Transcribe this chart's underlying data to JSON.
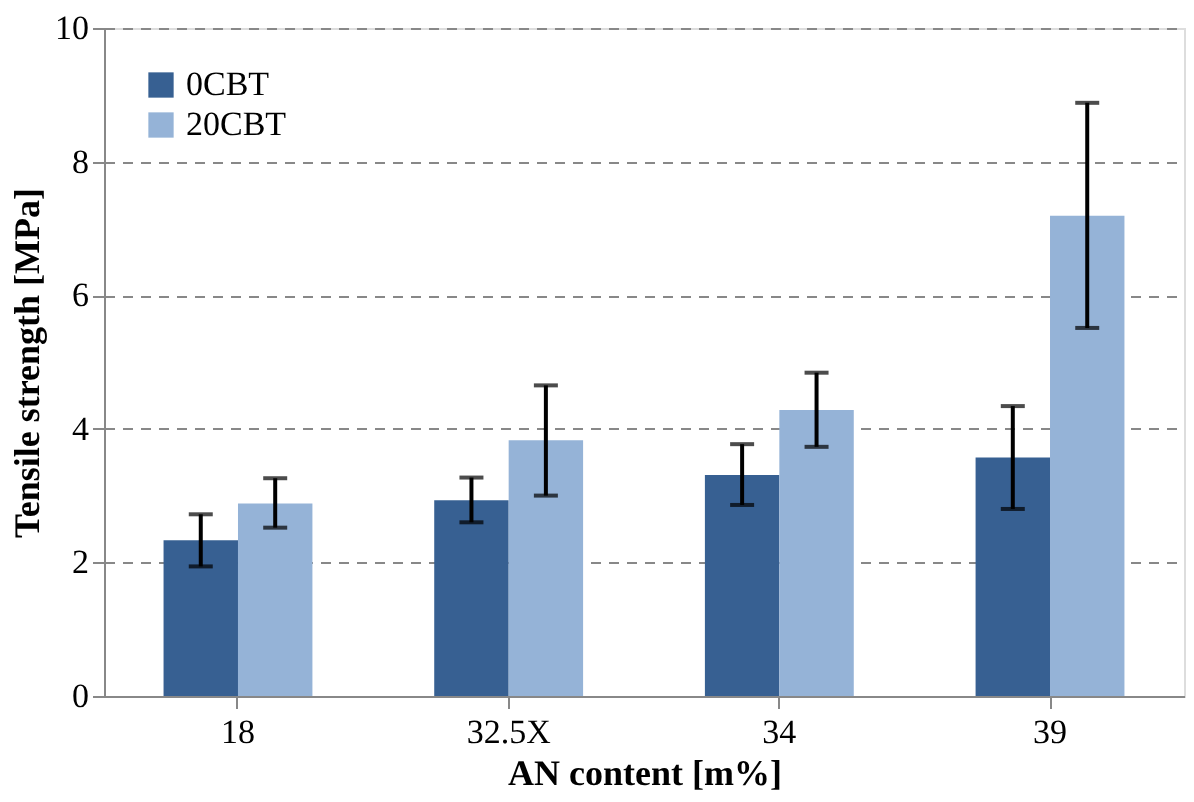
{
  "chart_data": {
    "type": "bar",
    "xlabel": "AN content [m%]",
    "ylabel": "Tensile strength [MPa]",
    "categories": [
      "18",
      "32.5X",
      "34",
      "39"
    ],
    "series": [
      {
        "name": "0CBT",
        "color": "#376092",
        "values": [
          2.33,
          2.93,
          3.31,
          3.57
        ],
        "errors": [
          [
            1.94,
            2.72
          ],
          [
            2.6,
            3.27
          ],
          [
            2.86,
            3.77
          ],
          [
            2.8,
            4.34
          ]
        ]
      },
      {
        "name": "20CBT",
        "color": "#95b3d7",
        "values": [
          2.88,
          3.83,
          4.28,
          7.19
        ],
        "errors": [
          [
            2.52,
            3.26
          ],
          [
            3.0,
            4.65
          ],
          [
            3.73,
            4.84
          ],
          [
            5.51,
            8.88
          ]
        ]
      }
    ],
    "ylim": [
      0,
      10
    ],
    "yticks": [
      0,
      2,
      4,
      6,
      8,
      10
    ],
    "grid": "y",
    "legend": "top left"
  }
}
